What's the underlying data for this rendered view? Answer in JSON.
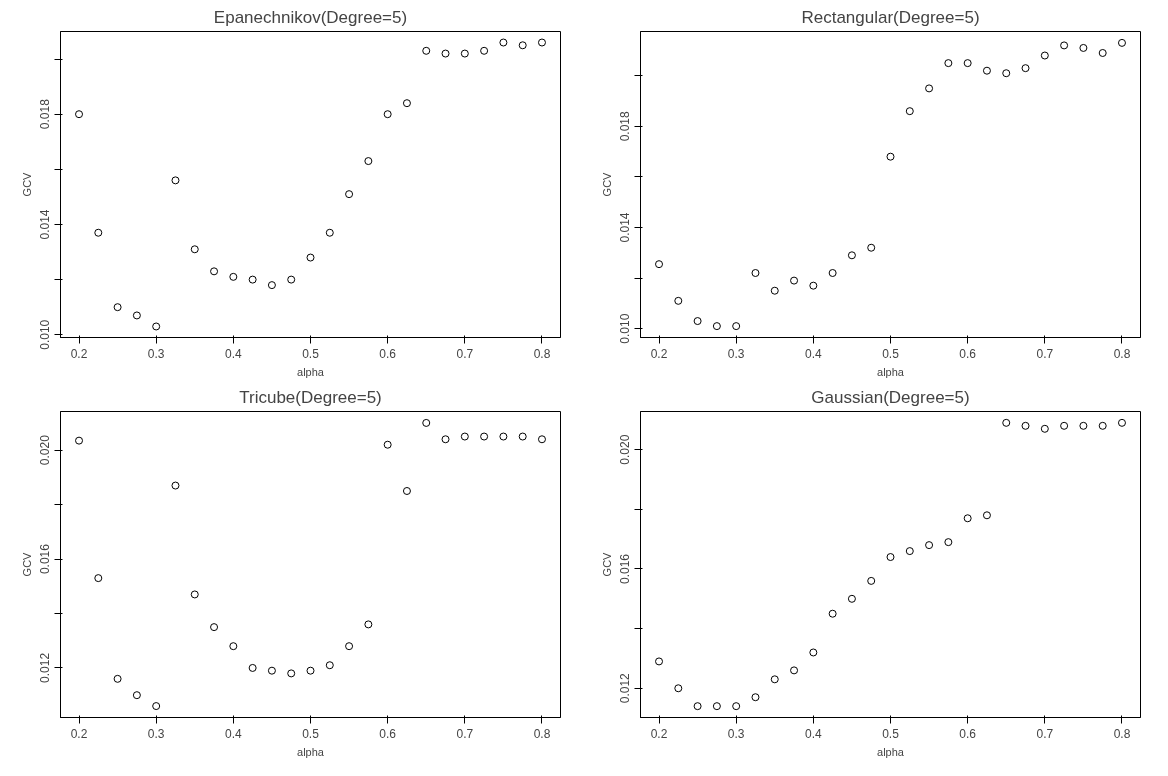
{
  "chart_data": [
    {
      "type": "scatter",
      "title": "Epanechnikov(Degree=5)",
      "xlabel": "alpha",
      "ylabel": "GCV",
      "marker": "circle",
      "grid": false,
      "x": [
        0.2,
        0.225,
        0.25,
        0.275,
        0.3,
        0.325,
        0.35,
        0.375,
        0.4,
        0.425,
        0.45,
        0.475,
        0.5,
        0.525,
        0.55,
        0.575,
        0.6,
        0.625,
        0.65,
        0.675,
        0.7,
        0.725,
        0.75,
        0.775,
        0.8
      ],
      "series": [
        {
          "color": "#000000",
          "values": [
            0.018,
            0.0137,
            0.011,
            0.0107,
            0.0103,
            0.0156,
            0.0131,
            0.0123,
            0.0121,
            0.012,
            0.0118,
            0.012,
            0.0128,
            0.0137,
            0.0151,
            0.0163,
            0.018,
            0.0184,
            0.0203,
            0.0202,
            0.0202,
            0.0203,
            0.0206,
            0.0205,
            0.0206
          ]
        }
      ],
      "xlim": [
        0.176,
        0.824
      ],
      "xticks": [
        0.2,
        0.3,
        0.4,
        0.5,
        0.6,
        0.7,
        0.8
      ],
      "ylim": [
        0.0099,
        0.021
      ],
      "yticks": [
        {
          "value": 0.01,
          "label": "0.010"
        },
        {
          "value": 0.012,
          "label": null
        },
        {
          "value": 0.014,
          "label": "0.014"
        },
        {
          "value": 0.016,
          "label": null
        },
        {
          "value": 0.018,
          "label": "0.018"
        },
        {
          "value": 0.02,
          "label": null
        }
      ]
    },
    {
      "type": "scatter",
      "title": "Rectangular(Degree=5)",
      "xlabel": "alpha",
      "ylabel": "GCV",
      "marker": "circle",
      "grid": false,
      "x": [
        0.2,
        0.225,
        0.25,
        0.275,
        0.3,
        0.325,
        0.35,
        0.375,
        0.4,
        0.425,
        0.45,
        0.475,
        0.5,
        0.525,
        0.55,
        0.575,
        0.6,
        0.625,
        0.65,
        0.675,
        0.7,
        0.725,
        0.75,
        0.775,
        0.8
      ],
      "series": [
        {
          "color": "#000000",
          "values": [
            0.01255,
            0.0111,
            0.0103,
            0.0101,
            0.0101,
            0.0122,
            0.0115,
            0.0119,
            0.0117,
            0.0122,
            0.0129,
            0.0132,
            0.0168,
            0.0186,
            0.0195,
            0.0205,
            0.0205,
            0.0202,
            0.0201,
            0.0203,
            0.0208,
            0.0212,
            0.0211,
            0.0209,
            0.0213
          ]
        }
      ],
      "xlim": [
        0.176,
        0.824
      ],
      "xticks": [
        0.2,
        0.3,
        0.4,
        0.5,
        0.6,
        0.7,
        0.8
      ],
      "ylim": [
        0.00965,
        0.02175
      ],
      "yticks": [
        {
          "value": 0.01,
          "label": "0.010"
        },
        {
          "value": 0.012,
          "label": null
        },
        {
          "value": 0.014,
          "label": "0.014"
        },
        {
          "value": 0.016,
          "label": null
        },
        {
          "value": 0.018,
          "label": "0.018"
        },
        {
          "value": 0.02,
          "label": null
        }
      ]
    },
    {
      "type": "scatter",
      "title": "Tricube(Degree=5)",
      "xlabel": "alpha",
      "ylabel": "GCV",
      "marker": "circle",
      "grid": false,
      "x": [
        0.2,
        0.225,
        0.25,
        0.275,
        0.3,
        0.325,
        0.35,
        0.375,
        0.4,
        0.425,
        0.45,
        0.475,
        0.5,
        0.525,
        0.55,
        0.575,
        0.6,
        0.625,
        0.65,
        0.675,
        0.7,
        0.725,
        0.75,
        0.775,
        0.8
      ],
      "series": [
        {
          "color": "#000000",
          "values": [
            0.02035,
            0.0153,
            0.0116,
            0.011,
            0.0106,
            0.0187,
            0.0147,
            0.0135,
            0.0128,
            0.012,
            0.0119,
            0.0118,
            0.0119,
            0.0121,
            0.0128,
            0.0136,
            0.0202,
            0.0185,
            0.021,
            0.0204,
            0.0205,
            0.0205,
            0.0205,
            0.0205,
            0.0204
          ]
        }
      ],
      "xlim": [
        0.176,
        0.824
      ],
      "xticks": [
        0.2,
        0.3,
        0.4,
        0.5,
        0.6,
        0.7,
        0.8
      ],
      "ylim": [
        0.01018,
        0.02142
      ],
      "yticks": [
        {
          "value": 0.012,
          "label": "0.012"
        },
        {
          "value": 0.014,
          "label": null
        },
        {
          "value": 0.016,
          "label": "0.016"
        },
        {
          "value": 0.018,
          "label": null
        },
        {
          "value": 0.02,
          "label": "0.020"
        }
      ]
    },
    {
      "type": "scatter",
      "title": "Gaussian(Degree=5)",
      "xlabel": "alpha",
      "ylabel": "GCV",
      "marker": "circle",
      "grid": false,
      "x": [
        0.2,
        0.225,
        0.25,
        0.275,
        0.3,
        0.325,
        0.35,
        0.375,
        0.4,
        0.425,
        0.45,
        0.475,
        0.5,
        0.525,
        0.55,
        0.575,
        0.6,
        0.625,
        0.65,
        0.675,
        0.7,
        0.725,
        0.75,
        0.775,
        0.8
      ],
      "series": [
        {
          "color": "#000000",
          "values": [
            0.0129,
            0.012,
            0.0114,
            0.0114,
            0.0114,
            0.0117,
            0.0123,
            0.0126,
            0.0132,
            0.0145,
            0.015,
            0.0156,
            0.0164,
            0.0166,
            0.0168,
            0.0169,
            0.0177,
            0.0178,
            0.0209,
            0.0208,
            0.0207,
            0.0208,
            0.0208,
            0.0208,
            0.0209
          ]
        }
      ],
      "xlim": [
        0.176,
        0.824
      ],
      "xticks": [
        0.2,
        0.3,
        0.4,
        0.5,
        0.6,
        0.7,
        0.8
      ],
      "ylim": [
        0.01102,
        0.02128
      ],
      "yticks": [
        {
          "value": 0.012,
          "label": "0.012"
        },
        {
          "value": 0.014,
          "label": null
        },
        {
          "value": 0.016,
          "label": "0.016"
        },
        {
          "value": 0.018,
          "label": null
        },
        {
          "value": 0.02,
          "label": "0.020"
        }
      ]
    }
  ]
}
